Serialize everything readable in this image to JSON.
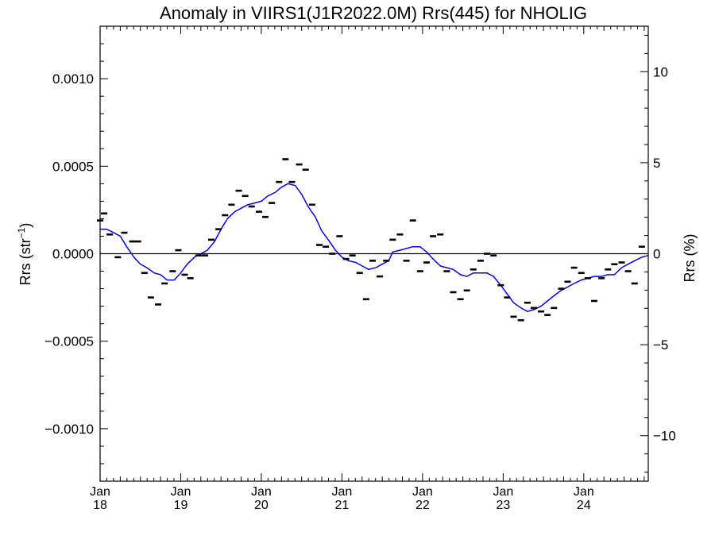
{
  "chart_data": {
    "type": "scatter",
    "title": "Anomaly in VIIRS1(J1R2022.0M) Rrs(445) for NHOLIG",
    "ylabel_left_prefix": "Rrs (str",
    "ylabel_left_sup": "−1",
    "ylabel_left_suffix": ")",
    "ylabel_right": "Rrs (%)",
    "xlim": [
      2018.0,
      2024.8
    ],
    "ylim": [
      -0.0013,
      0.0013
    ],
    "ylim_right": [
      -12.5,
      12.5
    ],
    "grid": false,
    "zero_line": true,
    "x_ticks": [
      {
        "x": 2018,
        "month": "Jan",
        "year": "18"
      },
      {
        "x": 2019,
        "month": "Jan",
        "year": "19"
      },
      {
        "x": 2020,
        "month": "Jan",
        "year": "20"
      },
      {
        "x": 2021,
        "month": "Jan",
        "year": "21"
      },
      {
        "x": 2022,
        "month": "Jan",
        "year": "22"
      },
      {
        "x": 2023,
        "month": "Jan",
        "year": "23"
      },
      {
        "x": 2024,
        "month": "Jan",
        "year": "24"
      }
    ],
    "y_ticks_left": [
      {
        "v": 0.001,
        "label": "0.0010"
      },
      {
        "v": 0.0005,
        "label": "0.0005"
      },
      {
        "v": 0.0,
        "label": "0.0000"
      },
      {
        "v": -0.0005,
        "label": "−0.0005"
      },
      {
        "v": -0.001,
        "label": "−0.0010"
      }
    ],
    "y_ticks_right": [
      {
        "v": 10,
        "label": "10"
      },
      {
        "v": 5,
        "label": "5"
      },
      {
        "v": 0,
        "label": "0"
      },
      {
        "v": -5,
        "label": "−5"
      },
      {
        "v": -10,
        "label": "−10"
      }
    ],
    "colors": {
      "points": "#000000",
      "line": "#0000ff",
      "zero": "#000000",
      "axis": "#000000"
    },
    "series": [
      {
        "kind": "monthly-points",
        "points": [
          [
            2018.0,
            0.00019
          ],
          [
            2018.05,
            0.00023
          ],
          [
            2018.12,
            0.00011
          ],
          [
            2018.22,
            -2e-05
          ],
          [
            2018.3,
            0.00012
          ],
          [
            2018.4,
            7e-05
          ],
          [
            2018.47,
            7e-05
          ],
          [
            2018.55,
            -0.00011
          ],
          [
            2018.63,
            -0.00025
          ],
          [
            2018.72,
            -0.00029
          ],
          [
            2018.8,
            -0.00017
          ],
          [
            2018.9,
            -0.0001
          ],
          [
            2018.97,
            2e-05
          ],
          [
            2019.05,
            -0.00012
          ],
          [
            2019.12,
            -0.00014
          ],
          [
            2019.22,
            -1e-05
          ],
          [
            2019.3,
            -1e-05
          ],
          [
            2019.38,
            8e-05
          ],
          [
            2019.47,
            0.00014
          ],
          [
            2019.55,
            0.00022
          ],
          [
            2019.63,
            0.00028
          ],
          [
            2019.72,
            0.00036
          ],
          [
            2019.8,
            0.00033
          ],
          [
            2019.88,
            0.00027
          ],
          [
            2019.97,
            0.00024
          ],
          [
            2020.05,
            0.00021
          ],
          [
            2020.13,
            0.00029
          ],
          [
            2020.22,
            0.00041
          ],
          [
            2020.3,
            0.00054
          ],
          [
            2020.38,
            0.00041
          ],
          [
            2020.47,
            0.00051
          ],
          [
            2020.55,
            0.00048
          ],
          [
            2020.63,
            0.00028
          ],
          [
            2020.72,
            5e-05
          ],
          [
            2020.8,
            4e-05
          ],
          [
            2020.88,
            0.0
          ],
          [
            2020.97,
            0.0001
          ],
          [
            2021.05,
            -3e-05
          ],
          [
            2021.13,
            -1e-05
          ],
          [
            2021.22,
            -0.00011
          ],
          [
            2021.3,
            -0.00026
          ],
          [
            2021.38,
            -4e-05
          ],
          [
            2021.47,
            -0.00013
          ],
          [
            2021.55,
            -4e-05
          ],
          [
            2021.63,
            8e-05
          ],
          [
            2021.72,
            0.00011
          ],
          [
            2021.8,
            -4e-05
          ],
          [
            2021.88,
            0.00019
          ],
          [
            2021.97,
            -0.0001
          ],
          [
            2022.05,
            -5e-05
          ],
          [
            2022.13,
            0.0001
          ],
          [
            2022.22,
            0.00011
          ],
          [
            2022.3,
            -0.0001
          ],
          [
            2022.38,
            -0.00022
          ],
          [
            2022.47,
            -0.00026
          ],
          [
            2022.55,
            -0.00021
          ],
          [
            2022.63,
            -9e-05
          ],
          [
            2022.72,
            -4e-05
          ],
          [
            2022.8,
            0.0
          ],
          [
            2022.88,
            -1e-05
          ],
          [
            2022.97,
            -0.00018
          ],
          [
            2023.05,
            -0.00025
          ],
          [
            2023.13,
            -0.00036
          ],
          [
            2023.22,
            -0.00038
          ],
          [
            2023.3,
            -0.00028
          ],
          [
            2023.38,
            -0.00031
          ],
          [
            2023.47,
            -0.00033
          ],
          [
            2023.55,
            -0.00035
          ],
          [
            2023.63,
            -0.00031
          ],
          [
            2023.72,
            -0.0002
          ],
          [
            2023.8,
            -0.00016
          ],
          [
            2023.88,
            -8e-05
          ],
          [
            2023.97,
            -0.00011
          ],
          [
            2024.05,
            -0.00014
          ],
          [
            2024.13,
            -0.00027
          ],
          [
            2024.22,
            -0.00014
          ],
          [
            2024.3,
            -9e-05
          ],
          [
            2024.38,
            -6e-05
          ],
          [
            2024.47,
            -5e-05
          ],
          [
            2024.55,
            -0.0001
          ],
          [
            2024.63,
            -0.00017
          ],
          [
            2024.72,
            4e-05
          ]
        ]
      },
      {
        "kind": "smoothed-line",
        "points": [
          [
            2018.0,
            0.00014
          ],
          [
            2018.08,
            0.00014
          ],
          [
            2018.17,
            0.00012
          ],
          [
            2018.25,
            0.0001
          ],
          [
            2018.33,
            4e-05
          ],
          [
            2018.42,
            -2e-05
          ],
          [
            2018.5,
            -6e-05
          ],
          [
            2018.58,
            -8e-05
          ],
          [
            2018.67,
            -0.00011
          ],
          [
            2018.75,
            -0.00012
          ],
          [
            2018.83,
            -0.00015
          ],
          [
            2018.92,
            -0.00015
          ],
          [
            2019.0,
            -0.00011
          ],
          [
            2019.08,
            -6e-05
          ],
          [
            2019.17,
            -2e-05
          ],
          [
            2019.25,
            0.0
          ],
          [
            2019.33,
            2e-05
          ],
          [
            2019.42,
            7e-05
          ],
          [
            2019.5,
            0.00014
          ],
          [
            2019.58,
            0.0002
          ],
          [
            2019.67,
            0.00024
          ],
          [
            2019.75,
            0.00026
          ],
          [
            2019.83,
            0.00028
          ],
          [
            2019.92,
            0.00029
          ],
          [
            2020.0,
            0.0003
          ],
          [
            2020.08,
            0.00033
          ],
          [
            2020.17,
            0.00035
          ],
          [
            2020.25,
            0.00038
          ],
          [
            2020.33,
            0.0004
          ],
          [
            2020.42,
            0.00039
          ],
          [
            2020.5,
            0.00034
          ],
          [
            2020.58,
            0.00027
          ],
          [
            2020.67,
            0.00021
          ],
          [
            2020.75,
            0.00013
          ],
          [
            2020.83,
            8e-05
          ],
          [
            2020.92,
            2e-05
          ],
          [
            2021.0,
            -2e-05
          ],
          [
            2021.08,
            -4e-05
          ],
          [
            2021.17,
            -5e-05
          ],
          [
            2021.25,
            -7e-05
          ],
          [
            2021.33,
            -9e-05
          ],
          [
            2021.42,
            -8e-05
          ],
          [
            2021.5,
            -6e-05
          ],
          [
            2021.58,
            -4e-05
          ],
          [
            2021.63,
            1e-05
          ],
          [
            2021.72,
            2e-05
          ],
          [
            2021.8,
            3e-05
          ],
          [
            2021.88,
            4e-05
          ],
          [
            2021.97,
            4e-05
          ],
          [
            2022.05,
            1e-05
          ],
          [
            2022.13,
            -3e-05
          ],
          [
            2022.22,
            -7e-05
          ],
          [
            2022.3,
            -8e-05
          ],
          [
            2022.38,
            -9e-05
          ],
          [
            2022.47,
            -0.00012
          ],
          [
            2022.55,
            -0.00013
          ],
          [
            2022.63,
            -0.00011
          ],
          [
            2022.72,
            -0.00011
          ],
          [
            2022.8,
            -0.00011
          ],
          [
            2022.88,
            -0.00013
          ],
          [
            2022.97,
            -0.00018
          ],
          [
            2023.05,
            -0.00023
          ],
          [
            2023.13,
            -0.00028
          ],
          [
            2023.22,
            -0.00031
          ],
          [
            2023.3,
            -0.00033
          ],
          [
            2023.38,
            -0.00032
          ],
          [
            2023.47,
            -0.0003
          ],
          [
            2023.55,
            -0.00027
          ],
          [
            2023.63,
            -0.00024
          ],
          [
            2023.72,
            -0.00021
          ],
          [
            2023.8,
            -0.00019
          ],
          [
            2023.88,
            -0.00017
          ],
          [
            2023.97,
            -0.00015
          ],
          [
            2024.05,
            -0.00014
          ],
          [
            2024.13,
            -0.00013
          ],
          [
            2024.22,
            -0.00013
          ],
          [
            2024.3,
            -0.00012
          ],
          [
            2024.38,
            -0.00012
          ],
          [
            2024.47,
            -8e-05
          ],
          [
            2024.55,
            -6e-05
          ],
          [
            2024.63,
            -4e-05
          ],
          [
            2024.72,
            -2e-05
          ],
          [
            2024.8,
            -1e-05
          ]
        ]
      }
    ]
  }
}
